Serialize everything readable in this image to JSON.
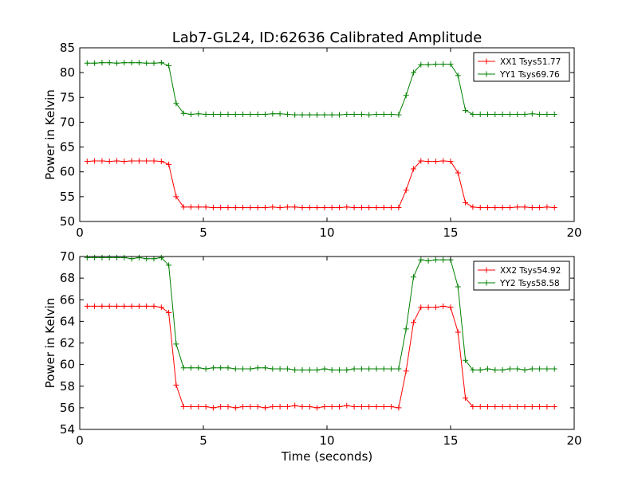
{
  "title": "Lab7-GL24, ID:62636 Calibrated Amplitude",
  "colors": {
    "xx": "#ff0000",
    "yy": "#008000"
  },
  "chart_data": [
    {
      "type": "line",
      "xlabel": "",
      "ylabel": "Power in Kelvin",
      "xlim": [
        0,
        20
      ],
      "ylim": [
        50,
        85
      ],
      "xticks": [
        0,
        5,
        10,
        15,
        20
      ],
      "yticks": [
        50,
        55,
        60,
        65,
        70,
        75,
        80,
        85
      ],
      "grid": false,
      "legend": "top-right",
      "x": [
        0.3,
        0.6,
        0.9,
        1.2,
        1.5,
        1.8,
        2.1,
        2.4,
        2.7,
        3.0,
        3.3,
        3.6,
        3.9,
        4.2,
        4.5,
        4.8,
        5.1,
        5.4,
        5.7,
        6.0,
        6.3,
        6.6,
        6.9,
        7.2,
        7.5,
        7.8,
        8.1,
        8.4,
        8.7,
        9.0,
        9.3,
        9.6,
        9.9,
        10.2,
        10.5,
        10.8,
        11.1,
        11.4,
        11.7,
        12.0,
        12.3,
        12.6,
        12.9,
        13.2,
        13.5,
        13.8,
        14.1,
        14.4,
        14.7,
        15.0,
        15.3,
        15.6,
        15.9,
        16.2,
        16.5,
        16.8,
        17.1,
        17.4,
        17.7,
        18.0,
        18.3,
        18.6,
        18.9,
        19.2
      ],
      "series": [
        {
          "name": "XX1 Tsys51.77",
          "color": "#ff0000",
          "values": [
            62.1,
            62.2,
            62.2,
            62.1,
            62.2,
            62.1,
            62.2,
            62.2,
            62.2,
            62.2,
            62.1,
            61.5,
            55.0,
            52.9,
            52.9,
            52.9,
            52.9,
            52.8,
            52.8,
            52.8,
            52.8,
            52.8,
            52.8,
            52.8,
            52.8,
            52.9,
            52.8,
            52.9,
            52.9,
            52.8,
            52.8,
            52.8,
            52.8,
            52.8,
            52.8,
            52.9,
            52.8,
            52.8,
            52.8,
            52.8,
            52.8,
            52.8,
            52.8,
            56.3,
            60.6,
            62.2,
            62.1,
            62.1,
            62.2,
            62.1,
            59.8,
            53.8,
            52.9,
            52.8,
            52.8,
            52.8,
            52.8,
            52.8,
            52.9,
            52.9,
            52.8,
            52.8,
            52.9,
            52.8
          ]
        },
        {
          "name": "YY1 Tsys69.76",
          "color": "#008000",
          "values": [
            81.9,
            81.9,
            82.0,
            82.0,
            81.9,
            82.0,
            82.0,
            82.0,
            81.9,
            81.9,
            82.0,
            81.4,
            73.8,
            71.8,
            71.6,
            71.7,
            71.6,
            71.6,
            71.6,
            71.6,
            71.6,
            71.6,
            71.6,
            71.6,
            71.6,
            71.7,
            71.7,
            71.6,
            71.5,
            71.5,
            71.5,
            71.5,
            71.5,
            71.5,
            71.5,
            71.6,
            71.6,
            71.6,
            71.5,
            71.6,
            71.6,
            71.6,
            71.5,
            75.4,
            80.0,
            81.6,
            81.6,
            81.7,
            81.7,
            81.7,
            79.4,
            72.4,
            71.6,
            71.6,
            71.6,
            71.6,
            71.6,
            71.6,
            71.6,
            71.6,
            71.7,
            71.6,
            71.6,
            71.6
          ]
        }
      ]
    },
    {
      "type": "line",
      "xlabel": "Time (seconds)",
      "ylabel": "Power in Kelvin",
      "xlim": [
        0,
        20
      ],
      "ylim": [
        54,
        70
      ],
      "xticks": [
        0,
        5,
        10,
        15,
        20
      ],
      "yticks": [
        54,
        56,
        58,
        60,
        62,
        64,
        66,
        68,
        70
      ],
      "grid": false,
      "legend": "top-right",
      "x": [
        0.3,
        0.6,
        0.9,
        1.2,
        1.5,
        1.8,
        2.1,
        2.4,
        2.7,
        3.0,
        3.3,
        3.6,
        3.9,
        4.2,
        4.5,
        4.8,
        5.1,
        5.4,
        5.7,
        6.0,
        6.3,
        6.6,
        6.9,
        7.2,
        7.5,
        7.8,
        8.1,
        8.4,
        8.7,
        9.0,
        9.3,
        9.6,
        9.9,
        10.2,
        10.5,
        10.8,
        11.1,
        11.4,
        11.7,
        12.0,
        12.3,
        12.6,
        12.9,
        13.2,
        13.5,
        13.8,
        14.1,
        14.4,
        14.7,
        15.0,
        15.3,
        15.6,
        15.9,
        16.2,
        16.5,
        16.8,
        17.1,
        17.4,
        17.7,
        18.0,
        18.3,
        18.6,
        18.9,
        19.2
      ],
      "series": [
        {
          "name": "XX2 Tsys54.92",
          "color": "#ff0000",
          "values": [
            65.4,
            65.4,
            65.4,
            65.4,
            65.4,
            65.4,
            65.4,
            65.4,
            65.4,
            65.4,
            65.3,
            64.8,
            58.1,
            56.1,
            56.1,
            56.1,
            56.1,
            56.0,
            56.1,
            56.1,
            56.0,
            56.1,
            56.1,
            56.1,
            56.0,
            56.1,
            56.1,
            56.1,
            56.2,
            56.1,
            56.1,
            56.0,
            56.1,
            56.1,
            56.1,
            56.2,
            56.1,
            56.1,
            56.1,
            56.1,
            56.1,
            56.1,
            56.0,
            59.4,
            63.9,
            65.3,
            65.3,
            65.3,
            65.4,
            65.3,
            63.0,
            56.9,
            56.1,
            56.1,
            56.1,
            56.1,
            56.1,
            56.1,
            56.1,
            56.1,
            56.1,
            56.1,
            56.1,
            56.1
          ]
        },
        {
          "name": "YY2 Tsys58.58",
          "color": "#008000",
          "values": [
            69.9,
            69.9,
            69.9,
            69.9,
            69.9,
            69.9,
            69.8,
            69.9,
            69.8,
            69.8,
            69.9,
            69.2,
            61.9,
            59.7,
            59.7,
            59.7,
            59.6,
            59.7,
            59.7,
            59.7,
            59.6,
            59.6,
            59.6,
            59.7,
            59.7,
            59.6,
            59.6,
            59.6,
            59.5,
            59.5,
            59.5,
            59.5,
            59.6,
            59.5,
            59.5,
            59.5,
            59.6,
            59.6,
            59.6,
            59.6,
            59.6,
            59.6,
            59.6,
            63.3,
            68.1,
            69.7,
            69.6,
            69.7,
            69.7,
            69.7,
            67.2,
            60.4,
            59.5,
            59.5,
            59.6,
            59.5,
            59.5,
            59.6,
            59.6,
            59.5,
            59.6,
            59.6,
            59.6,
            59.6
          ]
        }
      ]
    }
  ]
}
